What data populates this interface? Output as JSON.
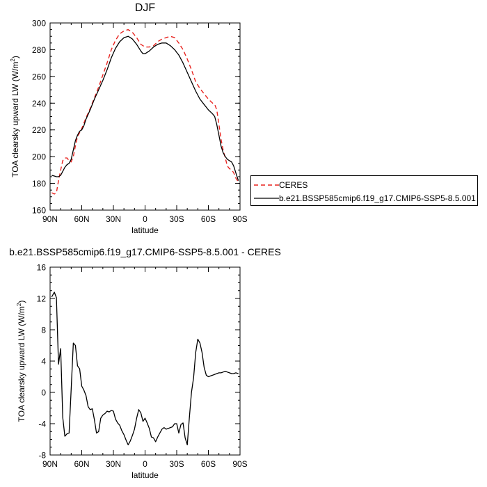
{
  "chart_data": [
    {
      "type": "line",
      "title": "DJF",
      "xlabel": "latitude",
      "ylabel": "TOA clearsky upward LW (W/m²)",
      "ylabel_main": "TOA clearsky upward LW (W/m",
      "ylabel_sup": "2",
      "ylabel_close": ")",
      "xlim": [
        90,
        -90
      ],
      "ylim": [
        160,
        300
      ],
      "x_ticks": [
        90,
        60,
        30,
        0,
        -30,
        -60,
        -90
      ],
      "x_tick_labels": [
        "90N",
        "60N",
        "30N",
        "0",
        "30S",
        "60S",
        "90S"
      ],
      "y_ticks": [
        160,
        180,
        200,
        220,
        240,
        260,
        280,
        300
      ],
      "y_tick_labels": [
        "160",
        "180",
        "200",
        "220",
        "240",
        "260",
        "280",
        "300"
      ],
      "legend_position": "right",
      "series": [
        {
          "name": "CERES",
          "color": "#e8231f",
          "dash": "dashed",
          "x": [
            88.5,
            86,
            84,
            82,
            80,
            78,
            76,
            74,
            72,
            70,
            68,
            66,
            64,
            62,
            60,
            58,
            56,
            52,
            48,
            44,
            40,
            36,
            32,
            28,
            24,
            20,
            16,
            14,
            12,
            8,
            4,
            0,
            -4,
            -8,
            -12,
            -16,
            -20,
            -24,
            -28,
            -32,
            -36,
            -40,
            -44,
            -48,
            -52,
            -56,
            -60,
            -64,
            -66,
            -68,
            -70,
            -72,
            -74,
            -76,
            -78,
            -80,
            -82,
            -84,
            -86,
            -88.5
          ],
          "y": [
            173,
            172,
            173,
            182,
            190,
            197,
            199,
            199,
            197,
            196,
            200,
            208,
            215,
            218,
            221,
            225,
            229,
            236,
            244,
            252,
            261,
            270,
            280,
            287,
            292,
            294,
            295,
            294,
            293,
            289,
            284,
            282,
            282,
            283,
            286,
            288,
            289,
            290,
            289,
            285,
            280,
            273,
            265,
            256,
            251,
            247,
            243,
            240,
            239,
            235,
            224,
            213,
            205,
            199,
            193,
            191,
            190,
            188,
            184,
            181
          ]
        },
        {
          "name": "b.e21.BSSP585cmip6.f19_g17.CMIP6-SSP5-8.5.001",
          "color": "#000000",
          "dash": "solid",
          "x": [
            88.5,
            86,
            84,
            82,
            80,
            78,
            76,
            74,
            72,
            70,
            68,
            66,
            64,
            62,
            60,
            58,
            56,
            52,
            48,
            44,
            40,
            36,
            32,
            28,
            24,
            20,
            16,
            14,
            12,
            8,
            4,
            2,
            0,
            -4,
            -8,
            -12,
            -16,
            -20,
            -24,
            -28,
            -32,
            -36,
            -40,
            -44,
            -48,
            -52,
            -56,
            -60,
            -64,
            -66,
            -68,
            -70,
            -72,
            -74,
            -76,
            -78,
            -80,
            -82,
            -84,
            -86,
            -88.5
          ],
          "y": [
            186,
            185.5,
            185,
            185,
            186,
            189,
            192,
            194,
            195,
            198,
            205,
            212,
            216,
            219,
            220,
            223,
            228,
            235,
            243,
            250,
            257,
            265,
            274,
            281,
            286,
            289,
            290,
            289,
            288,
            284,
            279,
            277,
            277,
            279,
            282,
            284,
            285,
            285,
            283,
            280,
            276,
            270,
            263,
            256,
            249,
            243,
            239,
            235,
            232,
            230,
            224,
            216,
            208,
            203,
            200,
            198,
            197,
            196,
            193,
            188,
            182
          ]
        }
      ]
    },
    {
      "type": "line",
      "title": "b.e21.BSSP585cmip6.f19_g17.CMIP6-SSP5-8.5.001 - CERES",
      "xlabel": "latitude",
      "ylabel": "TOA clearsky upward LW (W/m²)",
      "ylabel_main": "TOA clearsky upward LW (W/m",
      "ylabel_sup": "2",
      "ylabel_close": ")",
      "xlim": [
        90,
        -90
      ],
      "ylim": [
        -8,
        16
      ],
      "x_ticks": [
        90,
        60,
        30,
        0,
        -30,
        -60,
        -90
      ],
      "x_tick_labels": [
        "90N",
        "60N",
        "30N",
        "0",
        "30S",
        "60S",
        "90S"
      ],
      "y_ticks": [
        -8,
        -4,
        0,
        4,
        8,
        12,
        16
      ],
      "y_tick_labels": [
        "-8",
        "-4",
        "0",
        "4",
        "8",
        "12",
        "16"
      ],
      "series": [
        {
          "color": "#000000",
          "dash": "solid",
          "x": [
            88.5,
            86,
            84,
            82,
            80,
            78,
            76,
            74,
            72,
            70,
            68,
            66,
            64,
            62,
            60,
            58,
            56,
            54,
            52,
            50,
            48,
            46,
            44,
            42,
            40,
            38,
            36,
            34,
            32,
            30,
            28,
            26,
            24,
            22,
            20,
            18,
            16,
            14,
            12,
            10,
            8,
            6,
            4,
            2,
            0,
            -2,
            -4,
            -6,
            -8,
            -10,
            -12,
            -14,
            -16,
            -18,
            -20,
            -22,
            -24,
            -26,
            -28,
            -30,
            -32,
            -34,
            -36,
            -38,
            -40,
            -42,
            -44,
            -46,
            -48,
            -50,
            -52,
            -54,
            -56,
            -58,
            -60,
            -62,
            -64,
            -66,
            -68,
            -70,
            -72,
            -74,
            -76,
            -78,
            -80,
            -82,
            -84,
            -86,
            -88.5
          ],
          "y": [
            12.2,
            12.8,
            12.1,
            3.6,
            5.6,
            -3.2,
            -5.6,
            -5.3,
            -5.2,
            0.4,
            6.3,
            6.0,
            3.4,
            3.0,
            0.8,
            0.3,
            -0.4,
            -1.8,
            -2.2,
            -2.1,
            -3.5,
            -5.2,
            -5.0,
            -3.3,
            -2.9,
            -2.7,
            -2.4,
            -2.5,
            -2.3,
            -2.4,
            -3.4,
            -3.9,
            -4.2,
            -4.9,
            -5.4,
            -6.1,
            -6.7,
            -6.2,
            -5.5,
            -4.7,
            -3.3,
            -2.2,
            -2.6,
            -3.7,
            -3.3,
            -3.9,
            -4.6,
            -5.7,
            -5.8,
            -6.3,
            -5.7,
            -5.2,
            -4.7,
            -4.5,
            -4.7,
            -4.6,
            -4.5,
            -4.4,
            -4.0,
            -4.0,
            -5.2,
            -4.1,
            -3.9,
            -5.8,
            -6.7,
            -3.2,
            0.0,
            1.9,
            5.1,
            6.8,
            6.3,
            5.1,
            3.2,
            2.2,
            2.0,
            2.1,
            2.2,
            2.3,
            2.4,
            2.5,
            2.5,
            2.6,
            2.7,
            2.6,
            2.5,
            2.4,
            2.4,
            2.5,
            2.4
          ]
        }
      ]
    }
  ]
}
